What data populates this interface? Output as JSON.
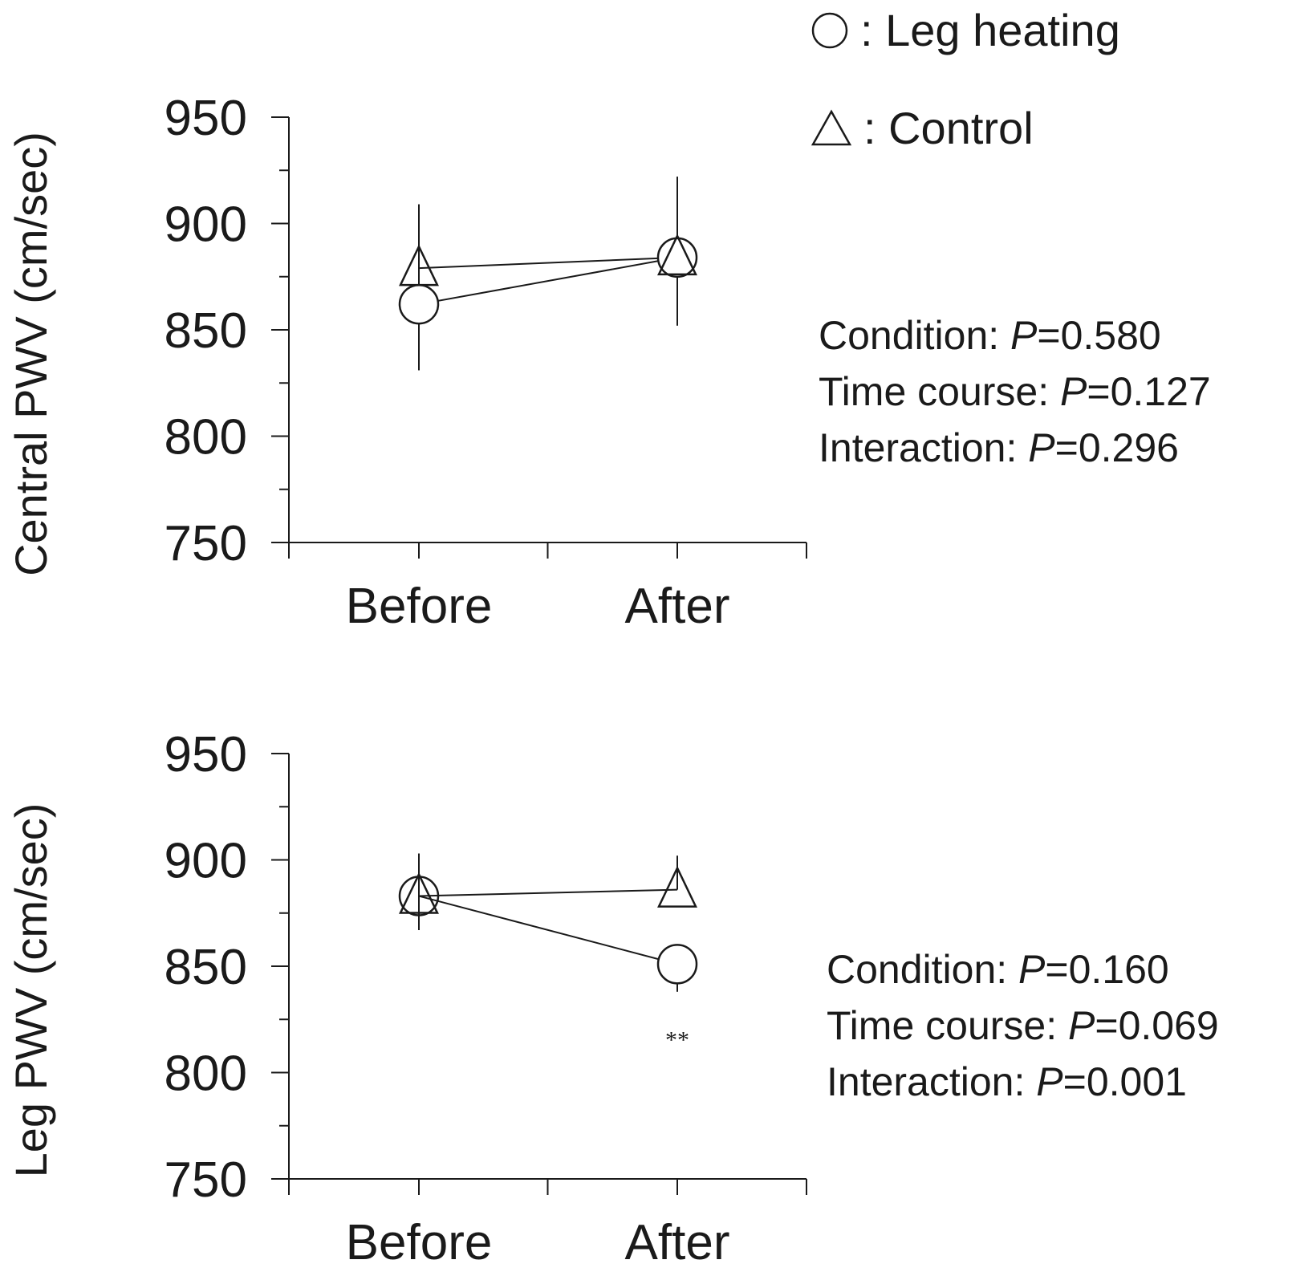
{
  "legend": [
    {
      "marker": "circle",
      "label": ": Leg heating"
    },
    {
      "marker": "triangle",
      "label": ": Control"
    }
  ],
  "chart_data": [
    {
      "type": "line",
      "ylabel": "Central PWV (cm/sec)",
      "xlabel": "",
      "categories": [
        "Before",
        "After"
      ],
      "ylim": [
        750,
        950
      ],
      "yticks": [
        "950",
        "900",
        "850",
        "800",
        "750"
      ],
      "series": [
        {
          "name": "Leg heating",
          "marker": "circle",
          "values": [
            862,
            884
          ],
          "err_high": [
            909,
            922
          ],
          "err_low": [
            831,
            852
          ]
        },
        {
          "name": "Control",
          "marker": "triangle",
          "values": [
            879,
            884
          ],
          "err_high": [
            909,
            922
          ],
          "err_low": [
            831,
            852
          ]
        }
      ],
      "annotations": [],
      "stats": [
        {
          "label": "Condition: ",
          "p_symbol": "P",
          "value": "=0.580"
        },
        {
          "label": "Time course: ",
          "p_symbol": "P",
          "value": "=0.127"
        },
        {
          "label": "Interaction: ",
          "p_symbol": "P",
          "value": "=0.296"
        }
      ]
    },
    {
      "type": "line",
      "ylabel": "Leg PWV (cm/sec)",
      "xlabel": "",
      "categories": [
        "Before",
        "After"
      ],
      "ylim": [
        750,
        950
      ],
      "yticks": [
        "950",
        "900",
        "850",
        "800",
        "750"
      ],
      "series": [
        {
          "name": "Leg heating",
          "marker": "circle",
          "values": [
            883,
            851
          ],
          "err_high": [
            903,
            null
          ],
          "err_low": [
            867,
            838
          ]
        },
        {
          "name": "Control",
          "marker": "triangle",
          "values": [
            883,
            886
          ],
          "err_high": [
            903,
            902
          ],
          "err_low": [
            867,
            null
          ]
        }
      ],
      "annotations": [
        {
          "category": "After",
          "text": "**",
          "value": 820
        }
      ],
      "stats": [
        {
          "label": "Condition: ",
          "p_symbol": "P",
          "value": "=0.160"
        },
        {
          "label": "Time course: ",
          "p_symbol": "P",
          "value": "=0.069"
        },
        {
          "label": "Interaction: ",
          "p_symbol": "P",
          "value": "=0.001"
        }
      ]
    }
  ]
}
